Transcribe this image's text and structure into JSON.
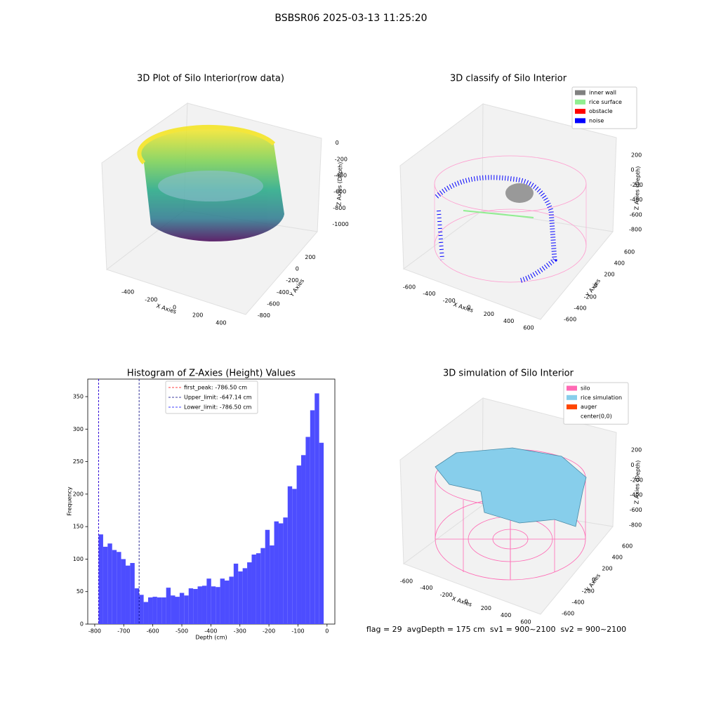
{
  "suptitle": "BSBSR06 2025-03-13 11:25:20",
  "chart_data": [
    {
      "type": "scatter3d",
      "title": "3D Plot of Silo Interior(row data)",
      "xlabel": "X Axies",
      "ylabel": "Y Axies",
      "zlabel": "Z Axies (Depth)",
      "xlim": [
        -500,
        500
      ],
      "xticks": [
        -400,
        -200,
        0,
        200,
        400
      ],
      "ylim": [
        -900,
        300
      ],
      "yticks": [
        -800,
        -600,
        -400,
        -200,
        0,
        200
      ],
      "zlim": [
        -1100,
        100
      ],
      "zticks": [
        -1000,
        -800,
        -600,
        -400,
        -200,
        0
      ]
    },
    {
      "type": "scatter3d",
      "title": "3D classify of Silo Interior",
      "xlabel": "X Axies",
      "ylabel": "Y Axies",
      "zlabel": "Z Axies (Depth)",
      "xlim": [
        -600,
        600
      ],
      "xticks": [
        -600,
        -400,
        -200,
        0,
        200,
        400,
        600
      ],
      "ylim": [
        -600,
        600
      ],
      "yticks": [
        -600,
        -400,
        -200,
        0,
        200,
        400,
        600
      ],
      "zlim": [
        -800,
        200
      ],
      "zticks": [
        -800,
        -600,
        -400,
        -200,
        0,
        200
      ],
      "legend": [
        {
          "name": "inner wall",
          "color": "#808080"
        },
        {
          "name": "rice surface",
          "color": "#90ee90"
        },
        {
          "name": "obstacle",
          "color": "#ff0000"
        },
        {
          "name": "noise",
          "color": "#0000ff"
        }
      ]
    },
    {
      "type": "histogram",
      "title": "Histogram of Z-Axies (Height) Values",
      "xlabel": "Depth (cm)",
      "ylabel": "Frequency",
      "color": "#4d4dff",
      "bins": [
        -786.5,
        -771,
        -755.5,
        -740,
        -724.5,
        -709,
        -693.5,
        -678,
        -662.5,
        -647,
        -631.5,
        -616,
        -600.5,
        -585,
        -569.5,
        -554,
        -538.5,
        -523,
        -507.5,
        -492,
        -476.5,
        -461,
        -445.5,
        -430,
        -414.5,
        -399,
        -383.5,
        -368,
        -352.5,
        -337,
        -321.5,
        -306,
        -290.5,
        -275,
        -259.5,
        -244,
        -228.5,
        -213,
        -197.5,
        -182,
        -166.5,
        -151,
        -135.5,
        -120,
        -104.5,
        -89,
        -73.5,
        -58,
        -42.5,
        -27,
        -11.5
      ],
      "values": [
        138,
        119,
        124,
        114,
        111,
        100,
        90,
        94,
        55,
        45,
        34,
        41,
        42,
        41,
        41,
        56,
        44,
        42,
        48,
        44,
        55,
        54,
        58,
        59,
        70,
        58,
        57,
        70,
        67,
        73,
        93,
        81,
        86,
        95,
        107,
        109,
        117,
        145,
        121,
        158,
        155,
        164,
        212,
        208,
        244,
        260,
        288,
        329,
        355,
        279
      ],
      "xlim": [
        -824,
        27
      ],
      "xticks": [
        -800,
        -700,
        -600,
        -500,
        -400,
        -300,
        -200,
        -100,
        0
      ],
      "ylim": [
        0,
        377
      ],
      "yticks": [
        0,
        50,
        100,
        150,
        200,
        250,
        300,
        350
      ],
      "vlines": [
        {
          "name": "first_peak: -786.50 cm",
          "value": -786.5,
          "color": "#ff0000"
        },
        {
          "name": "Upper_limit: -647.14 cm",
          "value": -647.14,
          "color": "#000080"
        },
        {
          "name": "Lower_limit: -786.50 cm",
          "value": -786.5,
          "color": "#0000ff"
        }
      ]
    },
    {
      "type": "surface3d",
      "title": "3D simulation of Silo Interior",
      "xlabel": "X Axies",
      "ylabel": "Y Axies",
      "zlabel": "Z Axies (Depth)",
      "xlim": [
        -600,
        600
      ],
      "xticks": [
        -600,
        -400,
        -200,
        0,
        200,
        400,
        600
      ],
      "ylim": [
        -600,
        600
      ],
      "yticks": [
        -600,
        -400,
        -200,
        0,
        200,
        400,
        600
      ],
      "zlim": [
        -800,
        200
      ],
      "zticks": [
        -800,
        -600,
        -400,
        -200,
        0,
        200
      ],
      "legend": [
        {
          "name": "silo",
          "color": "#ff69b4"
        },
        {
          "name": "rice simulation",
          "color": "#87ceeb"
        },
        {
          "name": "auger",
          "color": "#ff4500"
        },
        {
          "name": "center(0,0)",
          "color": "#ffffff"
        }
      ],
      "annotation": "flag = 29  avgDepth = 175 cm  sv1 = 900~2100  sv2 = 900~2100"
    }
  ]
}
